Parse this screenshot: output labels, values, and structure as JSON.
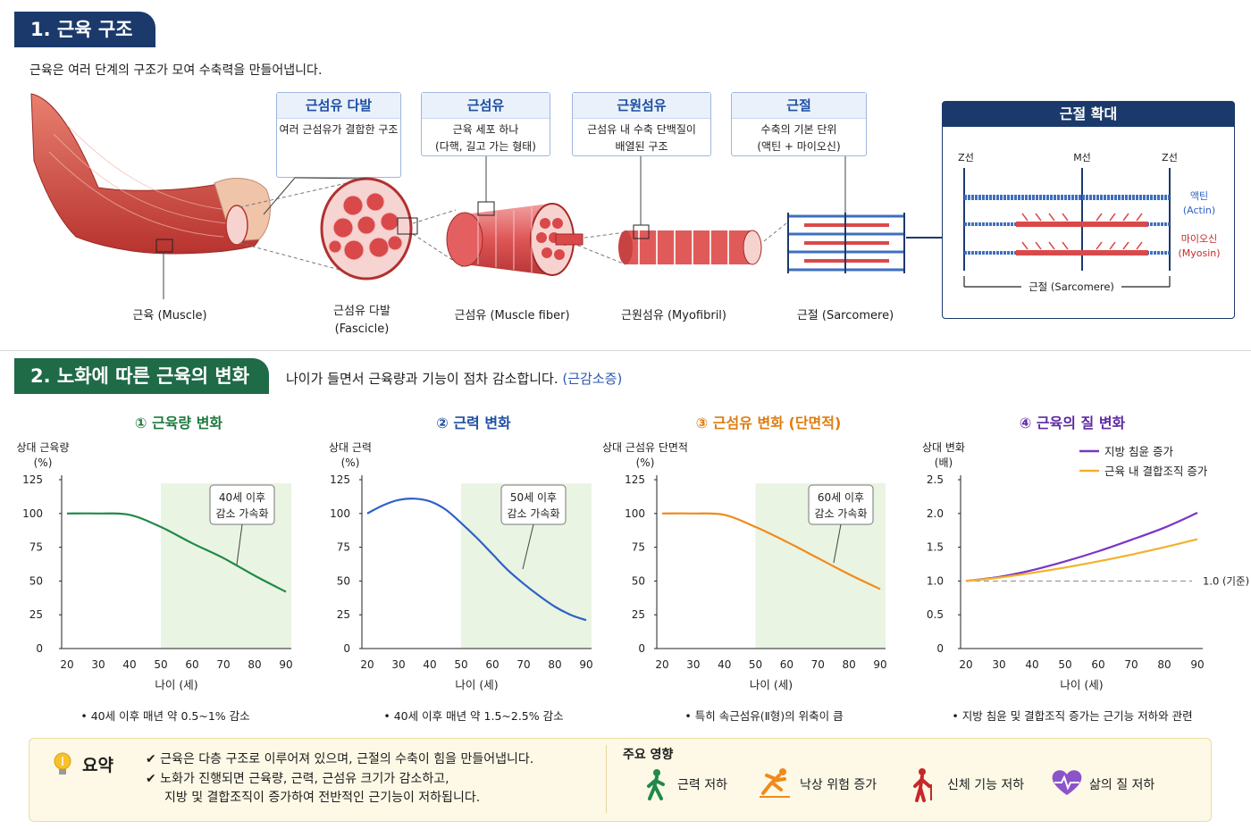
{
  "section1": {
    "title": "1. 근육 구조",
    "intro": "근육은 여러 단계의 구조가 모여 수축력을 만들어냅니다."
  },
  "callouts": [
    {
      "title": "근섬유 다발",
      "desc": [
        "여러 근섬유가 결합한 구조"
      ]
    },
    {
      "title": "근섬유",
      "desc": [
        "근육 세포 하나",
        "(다핵, 길고 가는 형태)"
      ]
    },
    {
      "title": "근원섬유",
      "desc": [
        "근섬유 내 수축 단백질이",
        "배열된 구조"
      ]
    },
    {
      "title": "근절",
      "desc": [
        "수축의 기본 단위",
        "(액틴 + 마이오신)"
      ]
    }
  ],
  "stage_labels": [
    {
      "text": "근육 (Muscle)"
    },
    {
      "text": "근섬유 다발",
      "text2": "(Fascicle)"
    },
    {
      "text": "근섬유 (Muscle fiber)"
    },
    {
      "text": "근원섬유 (Myofibril)"
    },
    {
      "text": "근절 (Sarcomere)"
    }
  ],
  "sarcomere_zoom": {
    "title": "근절 확대",
    "z_left": "Z선",
    "m_line": "M선",
    "z_right": "Z선",
    "actin": "액틴",
    "actin_en": "(Actin)",
    "myosin": "마이오신",
    "myosin_en": "(Myosin)",
    "sarcomere_label": "근절 (Sarcomere)"
  },
  "section2": {
    "title": "2. 노화에 따른 근육의 변화",
    "intro": "나이가 들면서 근육량과 기능이 점차 감소합니다.",
    "intro_highlight": "(근감소증)"
  },
  "colors": {
    "navy": "#1b3a6b",
    "green_header": "#1f6a47",
    "muscle_red": "#d9494a",
    "actin_blue": "#3e6fbf",
    "line_green": "#21894a",
    "line_blue": "#2e62c5",
    "line_orange": "#f08a1c",
    "line_purple": "#7b35c2",
    "line_yellow": "#f2b22a",
    "shade": "#eaf4e2"
  },
  "chart_data": [
    {
      "type": "line",
      "title": "① 근육량 변화",
      "ylabel": "상대 근육량",
      "yunit": "(%)",
      "xlabel": "나이 (세)",
      "x_ticks": [
        20,
        30,
        40,
        50,
        60,
        70,
        80,
        90
      ],
      "y_ticks": [
        0,
        25,
        50,
        75,
        100,
        125
      ],
      "ylim": [
        0,
        125
      ],
      "shade_from": 50,
      "series": [
        {
          "x": [
            20,
            30,
            40,
            50,
            60,
            70,
            80,
            90
          ],
          "values": [
            100,
            100,
            99,
            90,
            78,
            67,
            54,
            42
          ]
        }
      ],
      "annotation": [
        "40세 이후",
        "감소 가속화"
      ],
      "note": "• 40세 이후 매년 약 0.5~1% 감소"
    },
    {
      "type": "line",
      "title": "② 근력 변화",
      "ylabel": "상대 근력",
      "yunit": "(%)",
      "xlabel": "나이 (세)",
      "x_ticks": [
        20,
        30,
        40,
        50,
        60,
        70,
        80,
        90
      ],
      "y_ticks": [
        0,
        25,
        50,
        75,
        100,
        125
      ],
      "ylim": [
        0,
        125
      ],
      "shade_from": 50,
      "series": [
        {
          "x": [
            20,
            25,
            30,
            35,
            40,
            45,
            50,
            55,
            60,
            65,
            70,
            75,
            80,
            85,
            90
          ],
          "values": [
            100,
            106,
            110,
            111,
            109,
            103,
            93,
            82,
            70,
            58,
            48,
            39,
            31,
            25,
            21
          ]
        }
      ],
      "annotation": [
        "50세 이후",
        "감소 가속화"
      ],
      "note": "• 40세 이후 매년 약 1.5~2.5% 감소"
    },
    {
      "type": "line",
      "title": "③ 근섬유 변화 (단면적)",
      "ylabel": "상대 근섬유 단면적",
      "yunit": "(%)",
      "xlabel": "나이 (세)",
      "x_ticks": [
        20,
        30,
        40,
        50,
        60,
        70,
        80,
        90
      ],
      "y_ticks": [
        0,
        25,
        50,
        75,
        100,
        125
      ],
      "ylim": [
        0,
        125
      ],
      "shade_from": 50,
      "series": [
        {
          "x": [
            20,
            30,
            40,
            50,
            60,
            70,
            80,
            90
          ],
          "values": [
            100,
            100,
            99,
            90,
            79,
            67,
            55,
            44
          ]
        }
      ],
      "annotation": [
        "60세 이후",
        "감소 가속화"
      ],
      "note": "• 특히 속근섬유(Ⅱ형)의 위축이 큼"
    },
    {
      "type": "line",
      "title": "④ 근육의 질 변화",
      "ylabel": "상대 변화",
      "yunit": "(배)",
      "xlabel": "나이 (세)",
      "x_ticks": [
        20,
        30,
        40,
        50,
        60,
        70,
        80,
        90
      ],
      "y_ticks": [
        0,
        0.5,
        1.0,
        1.5,
        2.0,
        2.5
      ],
      "y_tick_labels": [
        "0",
        "0.5",
        "1.0",
        "1.5",
        "2.0",
        "2.5"
      ],
      "ylim": [
        0,
        2.5
      ],
      "baseline": 1.0,
      "baseline_label": "1.0 (기준)",
      "series": [
        {
          "name": "지방 침윤 증가",
          "x": [
            20,
            30,
            40,
            50,
            60,
            70,
            80,
            90
          ],
          "values": [
            1.0,
            1.06,
            1.16,
            1.29,
            1.44,
            1.61,
            1.79,
            2.01
          ]
        },
        {
          "name": "근육 내 결합조직 증가",
          "x": [
            20,
            30,
            40,
            50,
            60,
            70,
            80,
            90
          ],
          "values": [
            1.0,
            1.05,
            1.12,
            1.2,
            1.29,
            1.39,
            1.5,
            1.62
          ]
        }
      ],
      "note": "• 지방 침윤 및 결합조직 증가는 근기능 저하와 관련"
    }
  ],
  "summary": {
    "label": "요약",
    "lines": [
      "✔ 근육은 다층 구조로 이루어져 있으며, 근절의 수축이 힘을 만들어냅니다.",
      "✔ 노화가 진행되면 근육량, 근력, 근섬유 크기가 감소하고,",
      "지방 및 결합조직이 증가하여 전반적인 근기능이 저하됩니다."
    ],
    "effects_title": "주요 영향",
    "effects": [
      {
        "label": "근력 저하",
        "icon": "walking-person-icon"
      },
      {
        "label": "낙상 위험 증가",
        "icon": "falling-person-icon"
      },
      {
        "label": "신체 기능 저하",
        "icon": "elderly-person-icon"
      },
      {
        "label": "삶의 질 저하",
        "icon": "heart-pulse-icon"
      }
    ]
  }
}
